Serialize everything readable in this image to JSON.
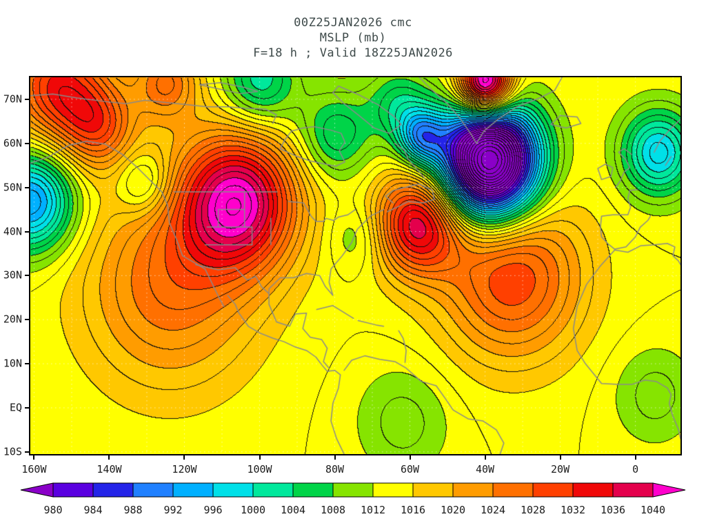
{
  "title": {
    "line1": "00Z25JAN2026 cmc",
    "line2": "MSLP (mb)",
    "line3": "F=18 h ; Valid 18Z25JAN2026"
  },
  "axes": {
    "lat_ticks": [
      {
        "label": "70N",
        "lat": 70
      },
      {
        "label": "60N",
        "lat": 60
      },
      {
        "label": "50N",
        "lat": 50
      },
      {
        "label": "40N",
        "lat": 40
      },
      {
        "label": "30N",
        "lat": 30
      },
      {
        "label": "20N",
        "lat": 20
      },
      {
        "label": "10N",
        "lat": 10
      },
      {
        "label": "EQ",
        "lat": 0
      },
      {
        "label": "10S",
        "lat": -10
      }
    ],
    "lon_ticks": [
      {
        "label": "160W",
        "lon": -160
      },
      {
        "label": "140W",
        "lon": -140
      },
      {
        "label": "120W",
        "lon": -120
      },
      {
        "label": "100W",
        "lon": -100
      },
      {
        "label": "80W",
        "lon": -80
      },
      {
        "label": "60W",
        "lon": -60
      },
      {
        "label": "40W",
        "lon": -40
      },
      {
        "label": "20W",
        "lon": -20
      },
      {
        "label": "0",
        "lon": 0
      }
    ]
  },
  "chart_data": {
    "type": "heatmap",
    "title": "MSLP (mb)",
    "model": "cmc",
    "init_time": "00Z25JAN2026",
    "forecast": "F=18 h",
    "valid_time": "18Z25JAN2026",
    "units": "mb",
    "extent": {
      "lon_min": -161,
      "lon_max": 12,
      "lat_min": -10.5,
      "lat_max": 75
    },
    "base_pressure": 1014,
    "contour_interval_fill": 4,
    "contour_interval_line": 2,
    "levels": [
      980,
      984,
      988,
      992,
      996,
      1000,
      1004,
      1008,
      1012,
      1016,
      1020,
      1024,
      1028,
      1032,
      1036,
      1040
    ],
    "colors": [
      "#8a00c8",
      "#5a00e0",
      "#2424e8",
      "#2080ff",
      "#00b0ff",
      "#00e0e8",
      "#00e89c",
      "#00d448",
      "#86e400",
      "#ffff00",
      "#ffc800",
      "#ff9c00",
      "#ff7000",
      "#ff4000",
      "#f00808",
      "#e4004c",
      "#ff00cc"
    ],
    "grid": {
      "lon_step": 10,
      "lat_step": 10,
      "color": "rgba(255,255,255,0.65)"
    },
    "coastline_color": "#8a8a8a",
    "pressure_centers": [
      {
        "name": "deep-low-north-atlantic",
        "lon": -39,
        "lat": 56,
        "amp": -58,
        "r": 9
      },
      {
        "name": "low-labrador-sea",
        "lon": -57,
        "lat": 61.5,
        "amp": -18,
        "r": 4.5
      },
      {
        "name": "high-northern-rockies",
        "lon": -106,
        "lat": 47,
        "amp": 27,
        "r": 11
      },
      {
        "name": "high-west-atlantic",
        "lon": -58,
        "lat": 42,
        "amp": 23,
        "r": 8
      },
      {
        "name": "high-greenland",
        "lon": -40,
        "lat": 73.5,
        "amp": 36,
        "r": 5
      },
      {
        "name": "high-arctic-alaska",
        "lon": -154,
        "lat": 73,
        "amp": 18,
        "r": 9
      },
      {
        "name": "ridge-alaska",
        "lon": -143,
        "lat": 64,
        "amp": 13,
        "r": 7
      },
      {
        "name": "low-gulf-of-alaska",
        "lon": -161,
        "lat": 47,
        "amp": -22,
        "r": 8
      },
      {
        "name": "high-east-pacific",
        "lon": -124,
        "lat": 28,
        "amp": 12,
        "r": 16
      },
      {
        "name": "high-azores",
        "lon": -33,
        "lat": 30,
        "amp": 16,
        "r": 13
      },
      {
        "name": "low-northeast-atlantic",
        "lon": 6,
        "lat": 58,
        "amp": -17,
        "r": 7
      },
      {
        "name": "low-hudson-bay",
        "lon": -80,
        "lat": 62,
        "amp": -10,
        "r": 7
      },
      {
        "name": "low-arctic-islands",
        "lon": -100,
        "lat": 74,
        "amp": -12,
        "r": 7
      },
      {
        "name": "low-baffin-bay",
        "lon": -63,
        "lat": 69,
        "amp": -9,
        "r": 6
      },
      {
        "name": "trough-bc-coast",
        "lon": -131,
        "lat": 51,
        "amp": -8,
        "r": 5
      },
      {
        "name": "trough-us-east-coast",
        "lon": -74,
        "lat": 39,
        "amp": -5,
        "r": 5.5
      },
      {
        "name": "high-arctic-canada",
        "lon": -125,
        "lat": 74,
        "amp": 12,
        "r": 6
      },
      {
        "name": "low-amazon",
        "lon": -62,
        "lat": -3,
        "amp": -5,
        "r": 9
      },
      {
        "name": "low-west-africa",
        "lon": 5,
        "lat": 3,
        "amp": -5,
        "r": 8
      }
    ],
    "map_lines": [
      [
        [
          -161,
          55.5
        ],
        [
          -156,
          57
        ],
        [
          -151,
          59.5
        ],
        [
          -146,
          60.5
        ],
        [
          -141,
          59.8
        ],
        [
          -136.5,
          57.5
        ],
        [
          -132.5,
          54.5
        ],
        [
          -129,
          51.5
        ],
        [
          -126,
          49
        ],
        [
          -124.5,
          46
        ],
        [
          -124,
          42
        ],
        [
          -122,
          38
        ],
        [
          -120.5,
          34.5
        ],
        [
          -117.5,
          33
        ],
        [
          -114.5,
          31.5
        ],
        [
          -112.5,
          28
        ],
        [
          -110.5,
          24.5
        ],
        [
          -109.5,
          23
        ]
      ],
      [
        [
          -108.5,
          25.5
        ],
        [
          -106.5,
          23.5
        ],
        [
          -105.5,
          21.5
        ],
        [
          -103,
          18.5
        ],
        [
          -100,
          17
        ],
        [
          -96.5,
          15.8
        ],
        [
          -93.5,
          15
        ],
        [
          -90.5,
          13.8
        ],
        [
          -87.5,
          13
        ],
        [
          -85,
          11.5
        ],
        [
          -83.5,
          9.8
        ],
        [
          -82,
          8.3
        ],
        [
          -80,
          8.5
        ],
        [
          -78.5,
          7.5
        ],
        [
          -79,
          4.5
        ],
        [
          -80.5,
          1
        ],
        [
          -81,
          -3
        ],
        [
          -79.5,
          -7
        ],
        [
          -77.5,
          -10.5
        ]
      ],
      [
        [
          -67,
          45
        ],
        [
          -70.5,
          43.5
        ],
        [
          -74,
          40.5
        ],
        [
          -75.5,
          37.5
        ],
        [
          -78,
          34.5
        ],
        [
          -81,
          31.5
        ],
        [
          -81.5,
          28.5
        ],
        [
          -80.5,
          25.5
        ],
        [
          -82.5,
          27.5
        ],
        [
          -84,
          30
        ],
        [
          -87.5,
          30.5
        ],
        [
          -91,
          29.5
        ],
        [
          -94.5,
          29.5
        ],
        [
          -97.5,
          27
        ],
        [
          -97.5,
          23.5
        ],
        [
          -95.5,
          19.5
        ],
        [
          -92,
          18.5
        ],
        [
          -90.5,
          21.3
        ],
        [
          -87.5,
          21.5
        ],
        [
          -88.5,
          18
        ],
        [
          -86.5,
          16
        ],
        [
          -83.5,
          15.5
        ],
        [
          -82,
          13.5
        ],
        [
          -83,
          10.5
        ],
        [
          -81.5,
          9
        ]
      ],
      [
        [
          -77.5,
          8.5
        ],
        [
          -75.5,
          10.8
        ],
        [
          -72,
          11.8
        ],
        [
          -68,
          11
        ],
        [
          -64,
          10.5
        ],
        [
          -61,
          9
        ],
        [
          -57,
          6
        ],
        [
          -53,
          5
        ],
        [
          -50.5,
          2
        ],
        [
          -48.5,
          -0.5
        ],
        [
          -44.5,
          -2.5
        ],
        [
          -40.5,
          -3
        ],
        [
          -37,
          -5
        ],
        [
          -35,
          -8
        ],
        [
          -36,
          -10.5
        ]
      ],
      [
        [
          -66,
          44.5
        ],
        [
          -63.5,
          45.5
        ],
        [
          -60.5,
          46.8
        ],
        [
          -56.5,
          46.5
        ],
        [
          -53.5,
          47.3
        ],
        [
          -54,
          49.3
        ],
        [
          -57.5,
          50.8
        ],
        [
          -60,
          50.3
        ],
        [
          -64.5,
          49.3
        ],
        [
          -66.5,
          48
        ],
        [
          -64.5,
          46.5
        ]
      ],
      [
        [
          -56,
          52
        ],
        [
          -58.5,
          54.5
        ],
        [
          -60.5,
          56.5
        ],
        [
          -61.5,
          58.5
        ],
        [
          -64,
          60
        ]
      ],
      [
        [
          -94.5,
          58.8
        ],
        [
          -90.5,
          57.2
        ],
        [
          -86.5,
          56
        ],
        [
          -82.5,
          55.3
        ],
        [
          -79.8,
          54.8
        ],
        [
          -77.3,
          55.8
        ],
        [
          -78.8,
          58.3
        ],
        [
          -77.3,
          60.3
        ],
        [
          -78.3,
          62.3
        ],
        [
          -81,
          63
        ],
        [
          -85.5,
          63.8
        ],
        [
          -88.5,
          63.5
        ],
        [
          -91.5,
          62.8
        ],
        [
          -93.3,
          60.8
        ],
        [
          -94.5,
          58.8
        ]
      ],
      [
        [
          -57.5,
          75
        ],
        [
          -54,
          72
        ],
        [
          -50,
          69
        ],
        [
          -46.5,
          65.5
        ],
        [
          -43.5,
          61.8
        ],
        [
          -42.3,
          60
        ],
        [
          -40.3,
          62.8
        ],
        [
          -36.5,
          65.5
        ],
        [
          -31.5,
          68.3
        ],
        [
          -25.5,
          70.3
        ],
        [
          -21.5,
          72
        ],
        [
          -19.5,
          75
        ]
      ],
      [
        [
          -79,
          73
        ],
        [
          -73.5,
          71
        ],
        [
          -68.5,
          68.8
        ],
        [
          -64.5,
          66.3
        ],
        [
          -62.3,
          64.3
        ],
        [
          -65.5,
          62.3
        ],
        [
          -69.5,
          63.5
        ],
        [
          -73.5,
          66.3
        ],
        [
          -77.5,
          69
        ],
        [
          -80.5,
          71.5
        ],
        [
          -79,
          73
        ]
      ],
      [
        [
          -161,
          70.8
        ],
        [
          -155,
          71.2
        ],
        [
          -148.5,
          70.3
        ],
        [
          -141,
          69.5
        ],
        [
          -135.5,
          69
        ],
        [
          -130.5,
          69.8
        ],
        [
          -125,
          69.3
        ],
        [
          -119.5,
          68.8
        ],
        [
          -114,
          68.3
        ],
        [
          -108.5,
          68.3
        ],
        [
          -104,
          68
        ],
        [
          -98.5,
          67.8
        ],
        [
          -95.5,
          66.5
        ],
        [
          -96.5,
          64.5
        ]
      ],
      [
        [
          -116,
          73.3
        ],
        [
          -110.5,
          72.3
        ],
        [
          -105,
          71.3
        ],
        [
          -100.5,
          71.8
        ],
        [
          -104.5,
          72.8
        ],
        [
          -110.5,
          73.8
        ],
        [
          -116,
          73.3
        ]
      ],
      [
        [
          -22.5,
          64.3
        ],
        [
          -18.5,
          63.5
        ],
        [
          -14.5,
          64.5
        ],
        [
          -15.5,
          66
        ],
        [
          -20,
          66.3
        ],
        [
          -22.5,
          64.3
        ]
      ],
      [
        [
          -10,
          54.3
        ],
        [
          -8,
          55.3
        ],
        [
          -6,
          54.5
        ],
        [
          -6.5,
          52.5
        ],
        [
          -9,
          51.8
        ],
        [
          -10,
          54.3
        ]
      ],
      [
        [
          -5.3,
          50
        ],
        [
          -4,
          51.5
        ],
        [
          -3,
          53.5
        ],
        [
          -1.5,
          54.5
        ],
        [
          -2.5,
          56.3
        ],
        [
          -4.5,
          58
        ],
        [
          -3,
          58.8
        ],
        [
          -1,
          57.5
        ]
      ],
      [
        [
          0.5,
          49.5
        ],
        [
          -1.5,
          49.3
        ],
        [
          -2,
          47.5
        ],
        [
          -1.3,
          45.5
        ],
        [
          -2,
          43.8
        ],
        [
          -6,
          43.8
        ],
        [
          -9,
          43.5
        ],
        [
          -9.3,
          41
        ],
        [
          -9,
          38.8
        ],
        [
          -7,
          37
        ],
        [
          -5.5,
          36
        ],
        [
          -2.5,
          36.5
        ],
        [
          0,
          38.8
        ],
        [
          1.3,
          41
        ],
        [
          3.3,
          42.5
        ],
        [
          4,
          43.5
        ]
      ],
      [
        [
          5,
          58
        ],
        [
          6.5,
          60.5
        ],
        [
          9,
          63
        ],
        [
          12,
          65.5
        ]
      ],
      [
        [
          8,
          55
        ],
        [
          9.5,
          57
        ]
      ],
      [
        [
          -5.5,
          35.8
        ],
        [
          -9.5,
          32
        ],
        [
          -13,
          28
        ],
        [
          -15.5,
          23
        ],
        [
          -16.5,
          18
        ],
        [
          -15.5,
          13
        ],
        [
          -13.3,
          10
        ],
        [
          -9,
          5.5
        ],
        [
          -4.5,
          5.3
        ],
        [
          -1,
          5.3
        ],
        [
          2.5,
          6.3
        ],
        [
          5.5,
          6
        ],
        [
          8.5,
          4.5
        ],
        [
          9.5,
          3
        ],
        [
          9,
          1
        ],
        [
          9.8,
          -1.5
        ],
        [
          11.5,
          -5
        ],
        [
          12,
          -7
        ]
      ],
      [
        [
          -5.5,
          35.8
        ],
        [
          -2,
          35.3
        ],
        [
          1.5,
          36.8
        ],
        [
          5,
          37
        ],
        [
          8.5,
          37.3
        ],
        [
          10.5,
          36.5
        ],
        [
          10,
          34.5
        ],
        [
          11.5,
          33.3
        ],
        [
          12,
          32.5
        ]
      ],
      [
        [
          -84.8,
          22.3
        ],
        [
          -80.5,
          23.2
        ],
        [
          -75,
          20.3
        ]
      ],
      [
        [
          -73.8,
          19.8
        ],
        [
          -69,
          18.8
        ],
        [
          -67,
          18.5
        ]
      ],
      [
        [
          -61.3,
          10.3
        ],
        [
          -61,
          13
        ],
        [
          -61.8,
          15.8
        ],
        [
          -63,
          17.5
        ]
      ],
      [
        [
          -92.3,
          46.8
        ],
        [
          -88.3,
          46.5
        ],
        [
          -87.3,
          45
        ],
        [
          -86.3,
          43.5
        ],
        [
          -85,
          42.3
        ],
        [
          -83,
          42.3
        ],
        [
          -82.3,
          43
        ],
        [
          -80.3,
          42.5
        ],
        [
          -79,
          43.3
        ],
        [
          -76.5,
          43.8
        ],
        [
          -74.5,
          45
        ]
      ],
      [
        [
          -122.8,
          49
        ],
        [
          -95.3,
          49
        ]
      ],
      [
        [
          -104,
          49
        ],
        [
          -104,
          41
        ]
      ],
      [
        [
          -111,
          45
        ],
        [
          -111,
          41
        ]
      ],
      [
        [
          -111,
          45
        ],
        [
          -104,
          45
        ]
      ],
      [
        [
          -114,
          41
        ],
        [
          -102,
          41
        ]
      ],
      [
        [
          -114.5,
          37
        ],
        [
          -102,
          37
        ]
      ],
      [
        [
          -102,
          41
        ],
        [
          -102,
          37
        ]
      ],
      [
        [
          -97,
          43
        ],
        [
          -97,
          37
        ]
      ],
      [
        [
          -117,
          32.5
        ],
        [
          -111,
          31.3
        ],
        [
          -106.5,
          31.8
        ],
        [
          -103.3,
          29
        ],
        [
          -101,
          29.8
        ],
        [
          -99.5,
          27.5
        ],
        [
          -97.5,
          25.9
        ]
      ]
    ]
  }
}
